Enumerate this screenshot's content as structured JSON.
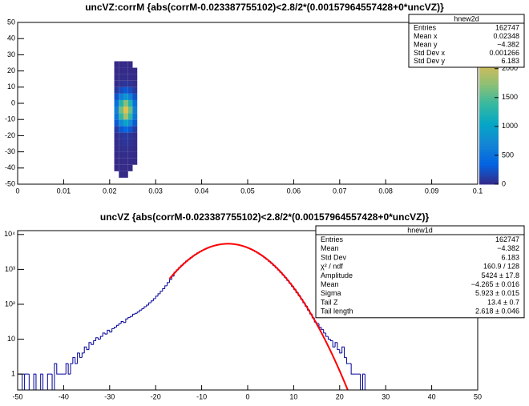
{
  "chart_data": [
    {
      "type": "heatmap",
      "title": "uncVZ:corrM {abs(corrM-0.023387755102)<2.8/2*(0.00157964557428+0*uncVZ)}",
      "x_edges": [
        0.021,
        0.022,
        0.023,
        0.024,
        0.025,
        0.026
      ],
      "y_edges": [
        -46,
        -42,
        -38,
        -34,
        -30,
        -26,
        -22,
        -18,
        -14,
        -10,
        -6,
        -2,
        2,
        6,
        10,
        14,
        18,
        22,
        26
      ],
      "z": [
        [
          0,
          1,
          1,
          0,
          0
        ],
        [
          1,
          2,
          3,
          1,
          0
        ],
        [
          2,
          5,
          6,
          4,
          1
        ],
        [
          5,
          12,
          15,
          10,
          3
        ],
        [
          10,
          25,
          35,
          24,
          9
        ],
        [
          20,
          50,
          70,
          48,
          18
        ],
        [
          27,
          67,
          92,
          67,
          27
        ],
        [
          111,
          279,
          383,
          279,
          111
        ],
        [
          300,
          755,
          1034,
          755,
          300
        ],
        [
          536,
          1349,
          1848,
          1349,
          536
        ],
        [
          638,
          1606,
          2200,
          1606,
          638
        ],
        [
          498,
          1253,
          1716,
          1253,
          498
        ],
        [
          255,
          642,
          880,
          642,
          255
        ],
        [
          86,
          217,
          297,
          217,
          86
        ],
        [
          19,
          48,
          66,
          48,
          19
        ],
        [
          4,
          10,
          12,
          9,
          3
        ],
        [
          1,
          3,
          4,
          2,
          1
        ],
        [
          1,
          1,
          2,
          1,
          0
        ]
      ],
      "xlim": [
        0,
        0.1
      ],
      "xticks": [
        0,
        0.01,
        0.02,
        0.03,
        0.04,
        0.05,
        0.06,
        0.07,
        0.08,
        0.09,
        0.1
      ],
      "ylim": [
        -50,
        50
      ],
      "yticks": [
        -50,
        -40,
        -30,
        -20,
        -10,
        0,
        10,
        20,
        30,
        40,
        50
      ],
      "zlim": [
        0,
        2800
      ],
      "zticks": [
        0,
        500,
        1000,
        1500,
        2000
      ],
      "palette": [
        "#352a87",
        "#0363e1",
        "#1485d4",
        "#06a7c6",
        "#38b99e",
        "#92bf73",
        "#d9ba56",
        "#fcce2e",
        "#f9fb0e"
      ],
      "stats": {
        "title": "hnew2d",
        "rows": [
          [
            "Entries",
            "162747"
          ],
          [
            "Mean x",
            "0.02348"
          ],
          [
            "Mean y",
            "−4.382"
          ],
          [
            "Std Dev x",
            "0.001266"
          ],
          [
            "Std Dev y",
            "6.183"
          ]
        ]
      }
    },
    {
      "type": "histogram",
      "title": "uncVZ {abs(corrM-0.023387755102)<2.8/2*(0.00157964557428+0*uncVZ)}",
      "bins": [
        -50,
        -49.5,
        -49,
        -48.5,
        -48,
        -47.5,
        -47,
        -46.5,
        -46,
        -45.5,
        -45,
        -44.5,
        -44,
        -43.5,
        -43,
        -42.5,
        -42,
        -41.5,
        -41,
        -40.5,
        -40,
        -39.5,
        -39,
        -38.5,
        -38,
        -37.5,
        -37,
        -36.5,
        -36,
        -35.5,
        -35,
        -34.5,
        -34,
        -33.5,
        -33,
        -32.5,
        -32,
        -31.5,
        -31,
        -30.5,
        -30,
        -29.5,
        -29,
        -28.5,
        -28,
        -27.5,
        -27,
        -26.5,
        -26,
        -25.5,
        -25,
        -24.5,
        -24,
        -23.5,
        -23,
        -22.5,
        -22,
        -21.5,
        -21,
        -20.5,
        -20,
        -19.5,
        -19,
        -18.5,
        -18,
        -17.5,
        -17,
        -16.5,
        -16,
        -15.5,
        -15,
        -14.5,
        -14,
        -13.5,
        -13,
        -12.5,
        -12,
        -11.5,
        -11,
        -10.5,
        -10,
        -9.5,
        -9,
        -8.5,
        -8,
        -7.5,
        -7,
        -6.5,
        -6,
        -5.5,
        -5,
        -4.5,
        -4,
        -3.5,
        -3,
        -2.5,
        -2,
        -1.5,
        -1,
        -0.5,
        0,
        0.5,
        1,
        1.5,
        2,
        2.5,
        3,
        3.5,
        4,
        4.5,
        5,
        5.5,
        6,
        6.5,
        7,
        7.5,
        8,
        8.5,
        9,
        9.5,
        10,
        10.5,
        11,
        11.5,
        12,
        12.5,
        13,
        13.5,
        14,
        14.5,
        15,
        15.5,
        16,
        16.5,
        17,
        17.5,
        18,
        18.5,
        19,
        19.5,
        20,
        20.5,
        21,
        21.5,
        22,
        22.5,
        23,
        23.5,
        24,
        24.5,
        25,
        25.5,
        26
      ],
      "values": [
        1,
        1,
        0,
        1,
        1,
        0,
        0,
        1,
        0,
        0,
        1,
        0,
        0,
        1,
        1,
        0,
        2,
        1,
        1,
        1,
        1,
        2,
        1,
        2,
        3,
        2,
        4,
        3,
        4,
        6,
        5,
        8,
        7,
        9,
        11,
        10,
        12,
        15,
        14,
        18,
        16,
        20,
        22,
        25,
        28,
        32,
        30,
        38,
        42,
        45,
        52,
        55,
        60,
        68,
        75,
        85,
        95,
        110,
        125,
        145,
        170,
        200,
        235,
        280,
        340,
        420,
        510,
        640,
        828,
        971,
        1132,
        1310,
        1505,
        1716,
        1944,
        2186,
        2442,
        2707,
        2980,
        3254,
        3532,
        3806,
        4072,
        4326,
        4562,
        4777,
        4966,
        5126,
        5256,
        5349,
        5406,
        5424,
        5403,
        5345,
        5250,
        5119,
        4956,
        4764,
        4547,
        4310,
        4056,
        3790,
        3516,
        3239,
        2962,
        2690,
        2425,
        2172,
        1931,
        1703,
        1493,
        1298,
        1122,
        963,
        819,
        693,
        582,
        485,
        401,
        330,
        269,
        218,
        176,
        140,
        111,
        88,
        68,
        53,
        41,
        31,
        28,
        22,
        19,
        15,
        12,
        10,
        9,
        6,
        8,
        5,
        4,
        6,
        3,
        2,
        2,
        1,
        1,
        1,
        1,
        0,
        1,
        0
      ],
      "color": "#000099",
      "fit": {
        "color": "#ff0000",
        "amplitude": 5424,
        "mean": -4.265,
        "sigma": 5.923,
        "range": [
          -17,
          29
        ]
      },
      "xlim": [
        -50,
        50
      ],
      "xticks": [
        -50,
        -40,
        -30,
        -20,
        -10,
        0,
        10,
        20,
        30,
        40,
        50
      ],
      "ylim": [
        0.35,
        12900
      ],
      "log": true,
      "yticks": [
        1,
        10,
        {
          "value": 100,
          "label": "10²"
        },
        {
          "value": 1000,
          "label": "10³"
        },
        {
          "value": 10000,
          "label": "10⁴"
        }
      ],
      "stats": {
        "title": "hnew1d",
        "rows": [
          [
            "Entries",
            "162747"
          ],
          [
            "Mean",
            "−4.382"
          ],
          [
            "Std Dev",
            "6.183"
          ],
          [
            "χ² / ndf",
            "160.9 / 128"
          ],
          [
            "Amplitude",
            "5424 ± 17.8"
          ],
          [
            "Mean",
            "−4.265 ± 0.016"
          ],
          [
            "Sigma",
            "5.923 ± 0.015"
          ],
          [
            "Tail Z",
            "13.4 ± 0.7"
          ],
          [
            "Tail length",
            "2.618 ± 0.046"
          ]
        ]
      }
    }
  ]
}
